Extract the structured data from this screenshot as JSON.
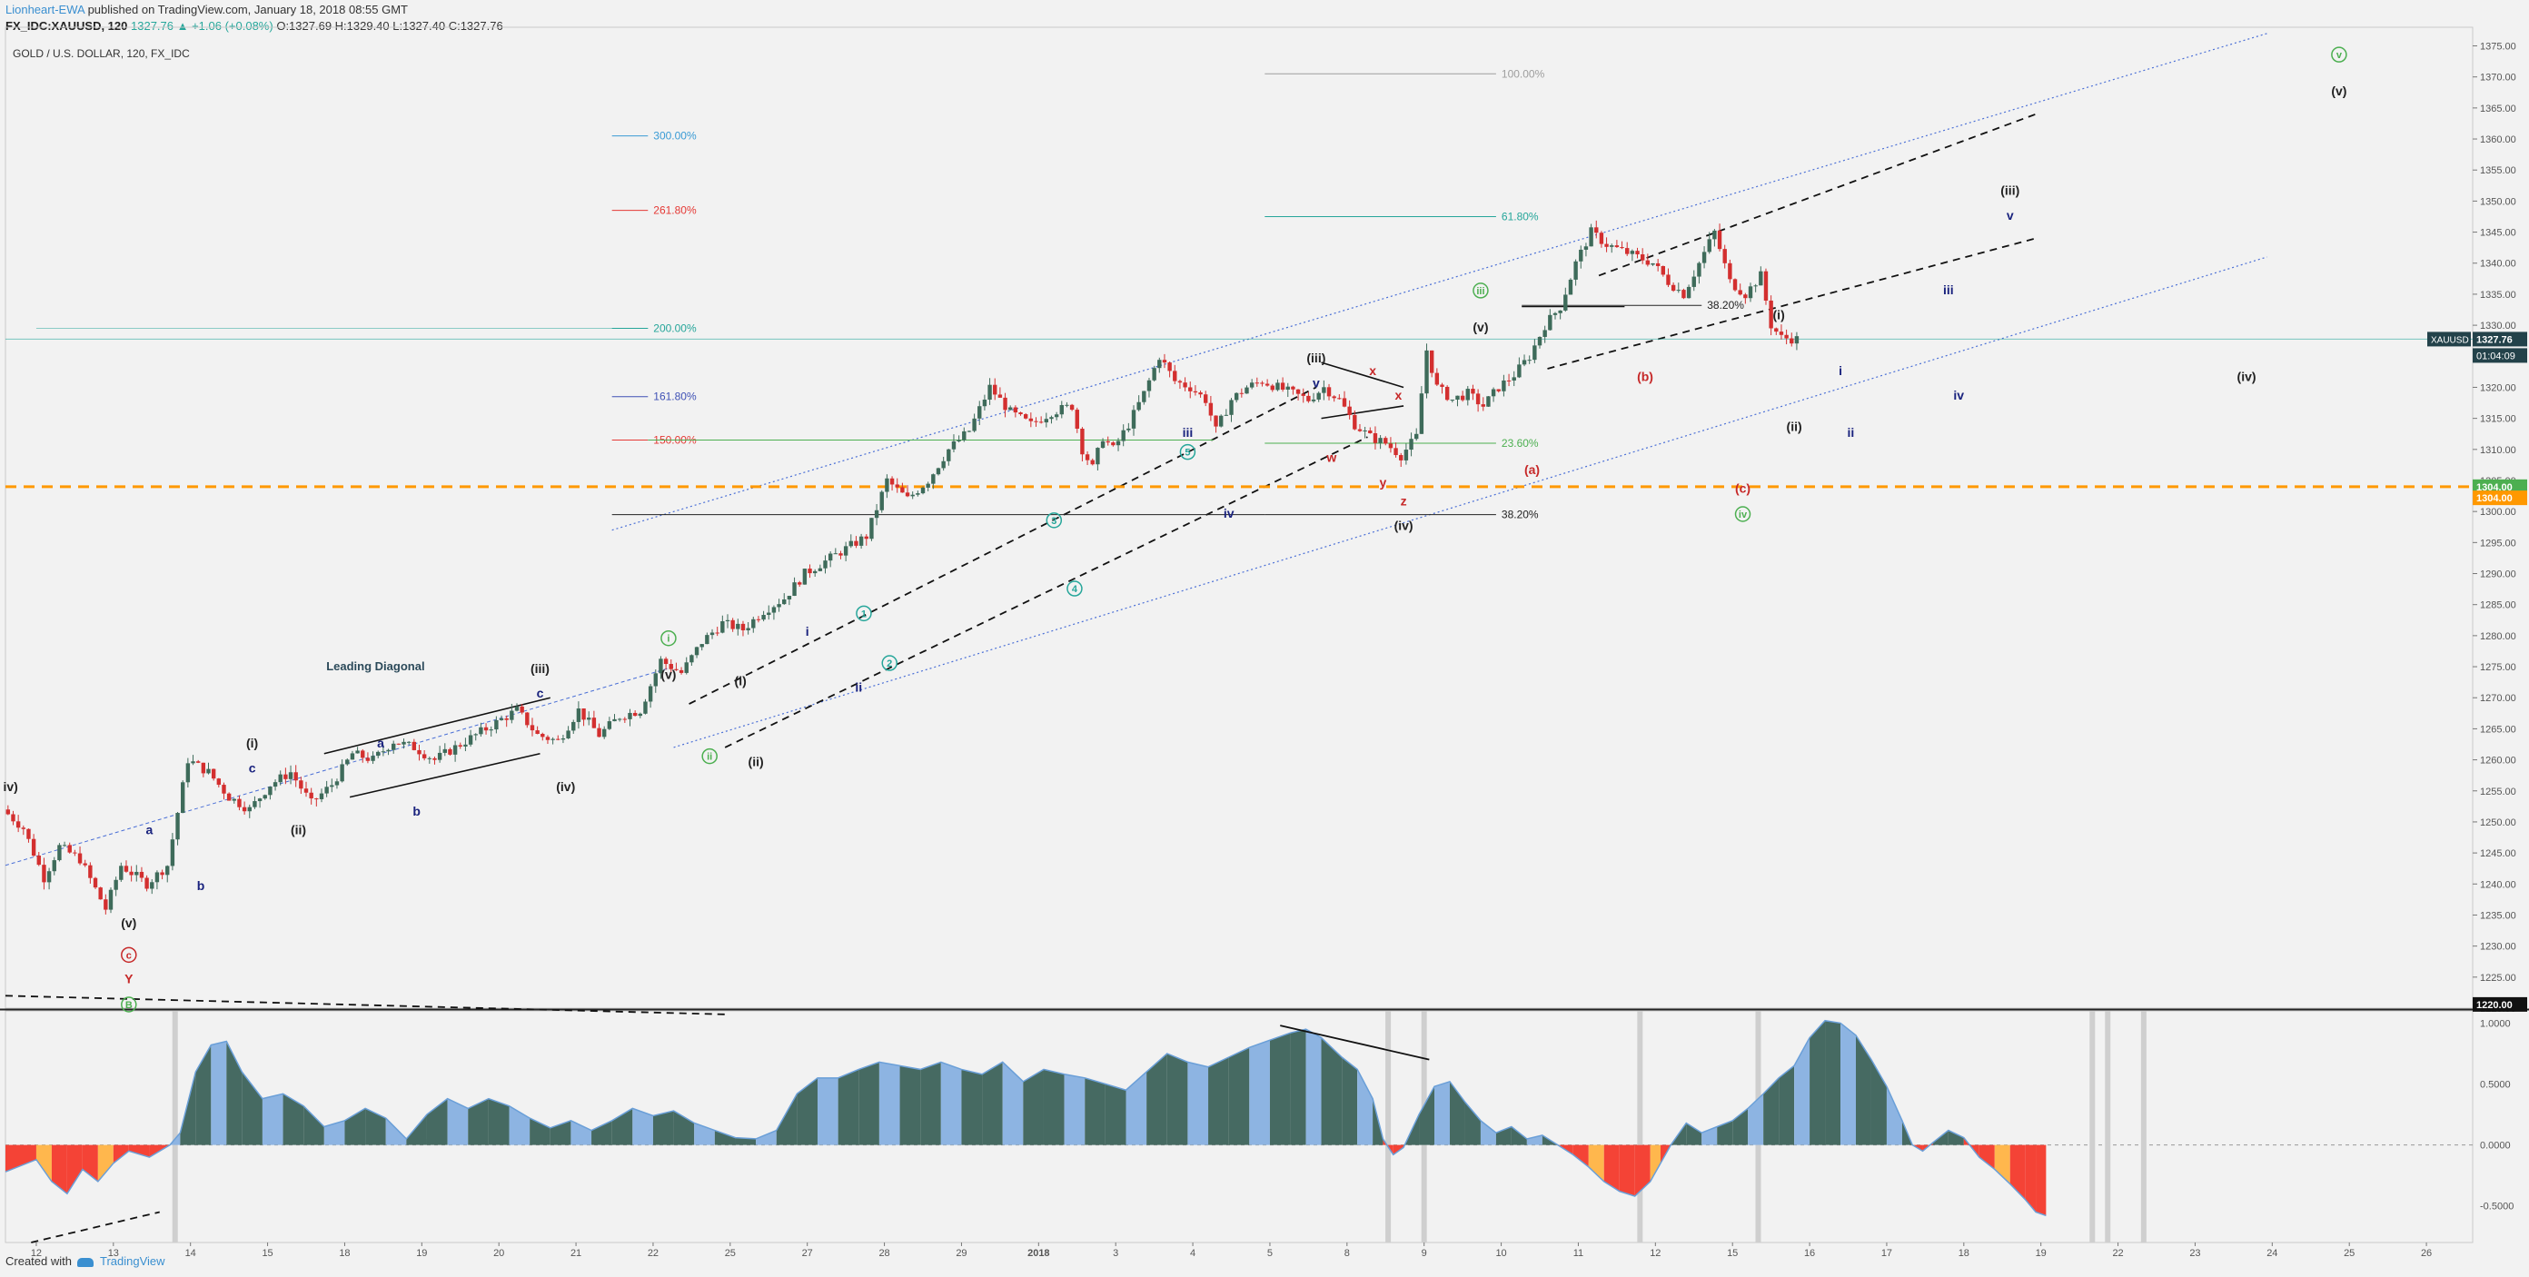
{
  "header": {
    "author": "Lionheart-EWA",
    "published_text": " published on TradingView.com, January 18, 2018 08:55 GMT",
    "symbol": "FX_IDC:XAUUSD, 120",
    "change": "1327.76 ▲ +1.06 (+0.08%)",
    "ohlc": "O:1327.69 H:1329.40 L:1327.40 C:1327.76"
  },
  "footer": {
    "created_with": "Created with",
    "brand": "TradingView"
  },
  "colors": {
    "background": "#f2f2f2",
    "up_candle": "#3e6b5a",
    "down_candle": "#d32f2f",
    "orange_level": "#ff9800",
    "channel_dotted": "#4a6fd6",
    "osc_positive_dark": "#466a62",
    "osc_positive_light": "#8db4e2",
    "osc_negative": "#f44336",
    "osc_negative_light": "#ffb74d",
    "last_price_tag": "#23424a"
  },
  "chart_data": {
    "type": "candlestick",
    "title": "GOLD / U.S. DOLLAR, 120, FX_IDC",
    "symbol": "XAUUSD",
    "timeframe": "120",
    "x_ticks": [
      "12",
      "13",
      "14",
      "15",
      "18",
      "19",
      "20",
      "21",
      "22",
      "25",
      "27",
      "28",
      "29",
      "2018",
      "3",
      "4",
      "5",
      "8",
      "9",
      "10",
      "11",
      "12",
      "15",
      "16",
      "17",
      "18",
      "19",
      "22",
      "23",
      "24",
      "25",
      "26"
    ],
    "y_ticks": [
      "1375.00",
      "1370.00",
      "1365.00",
      "1360.00",
      "1355.00",
      "1350.00",
      "1345.00",
      "1340.00",
      "1335.00",
      "1330.00",
      "1325.00",
      "1320.00",
      "1315.00",
      "1310.00",
      "1305.00",
      "1300.00",
      "1295.00",
      "1290.00",
      "1285.00",
      "1280.00",
      "1275.00",
      "1270.00",
      "1265.00",
      "1260.00",
      "1255.00",
      "1250.00",
      "1245.00",
      "1240.00",
      "1235.00",
      "1230.00",
      "1225.00",
      "1220.00"
    ],
    "ylim": [
      1220,
      1378
    ],
    "path_points": [
      [
        0,
        1252
      ],
      [
        4,
        1249
      ],
      [
        8,
        1241
      ],
      [
        11,
        1246
      ],
      [
        15,
        1244
      ],
      [
        20,
        1236
      ],
      [
        23,
        1243
      ],
      [
        28,
        1240
      ],
      [
        32,
        1243
      ],
      [
        36,
        1260
      ],
      [
        40,
        1258
      ],
      [
        44,
        1254
      ],
      [
        48,
        1252
      ],
      [
        52,
        1256
      ],
      [
        56,
        1258
      ],
      [
        60,
        1253
      ],
      [
        64,
        1256
      ],
      [
        68,
        1261
      ],
      [
        72,
        1260
      ],
      [
        76,
        1263
      ],
      [
        80,
        1262
      ],
      [
        84,
        1260
      ],
      [
        90,
        1263
      ],
      [
        96,
        1266
      ],
      [
        100,
        1268
      ],
      [
        104,
        1264
      ],
      [
        108,
        1263
      ],
      [
        112,
        1268
      ],
      [
        116,
        1264
      ],
      [
        120,
        1267
      ],
      [
        124,
        1268
      ],
      [
        128,
        1276
      ],
      [
        132,
        1274
      ],
      [
        136,
        1279
      ],
      [
        140,
        1282
      ],
      [
        144,
        1281
      ],
      [
        148,
        1284
      ],
      [
        152,
        1286
      ],
      [
        156,
        1290
      ],
      [
        160,
        1292
      ],
      [
        164,
        1294
      ],
      [
        168,
        1296
      ],
      [
        172,
        1305
      ],
      [
        176,
        1302
      ],
      [
        180,
        1305
      ],
      [
        184,
        1310
      ],
      [
        188,
        1313
      ],
      [
        192,
        1320
      ],
      [
        196,
        1316
      ],
      [
        200,
        1314
      ],
      [
        204,
        1316
      ],
      [
        208,
        1317
      ],
      [
        210,
        1310
      ],
      [
        212,
        1307
      ],
      [
        214,
        1312
      ],
      [
        216,
        1310
      ],
      [
        219,
        1314
      ],
      [
        222,
        1319
      ],
      [
        225,
        1325
      ],
      [
        228,
        1321
      ],
      [
        231,
        1320
      ],
      [
        234,
        1318
      ],
      [
        236,
        1313
      ],
      [
        239,
        1318
      ],
      [
        242,
        1320
      ],
      [
        245,
        1321
      ],
      [
        248,
        1320
      ],
      [
        251,
        1319
      ],
      [
        254,
        1318
      ],
      [
        257,
        1320
      ],
      [
        260,
        1318
      ],
      [
        263,
        1314
      ],
      [
        266,
        1312
      ],
      [
        269,
        1311
      ],
      [
        272,
        1309
      ],
      [
        275,
        1312
      ],
      [
        277,
        1326
      ],
      [
        279,
        1320
      ],
      [
        282,
        1318
      ],
      [
        285,
        1319
      ],
      [
        288,
        1317
      ],
      [
        291,
        1320
      ],
      [
        294,
        1322
      ],
      [
        297,
        1325
      ],
      [
        300,
        1330
      ],
      [
        303,
        1333
      ],
      [
        306,
        1340
      ],
      [
        309,
        1345
      ],
      [
        312,
        1343
      ],
      [
        315,
        1342
      ],
      [
        318,
        1341
      ],
      [
        321,
        1340
      ],
      [
        324,
        1337
      ],
      [
        327,
        1335
      ],
      [
        330,
        1340
      ],
      [
        333,
        1345
      ],
      [
        336,
        1337
      ],
      [
        339,
        1335
      ],
      [
        342,
        1338
      ],
      [
        344,
        1330
      ],
      [
        346,
        1328
      ],
      [
        349,
        1327.76
      ]
    ],
    "last_price": "1327.76",
    "countdown": "01:04:09",
    "levels": {
      "orange_dashed": "1304.00",
      "orange_dashed_2": "1304.00",
      "bottom": "1220.00"
    },
    "fib_projection_1": [
      {
        "label": "300.00%",
        "price": 1360.5,
        "color": "#3a9bd5"
      },
      {
        "label": "261.80%",
        "price": 1348.5,
        "color": "#e53935"
      },
      {
        "label": "200.00%",
        "price": 1329.5,
        "color": "#26a69a"
      },
      {
        "label": "161.80%",
        "price": 1318.5,
        "color": "#3f51b5"
      },
      {
        "label": "150.00%",
        "price": 1311.5,
        "color": "#e53935"
      }
    ],
    "fib_projection_2": [
      {
        "label": "100.00%",
        "price": 1370.5,
        "color": "#9e9e9e"
      },
      {
        "label": "61.80%",
        "price": 1347.5,
        "color": "#26a69a"
      },
      {
        "label": "23.60%",
        "price": 1311.0,
        "color": "#4caf50"
      },
      {
        "label": "38.20%",
        "price": 1299.5,
        "color": "#222222"
      }
    ],
    "fib_retrace_3": {
      "label": "38.20%",
      "price": 1333.2,
      "color": "#222222"
    },
    "annotation_text": "Leading Diagonal",
    "wave_labels": [
      {
        "t": "iv)",
        "x": 1,
        "y": 1255,
        "c": "#222"
      },
      {
        "t": "a",
        "x": 28,
        "y": 1248,
        "c": "#1a237e"
      },
      {
        "t": "b",
        "x": 38,
        "y": 1239,
        "c": "#1a237e"
      },
      {
        "t": "(v)",
        "x": 24,
        "y": 1233,
        "c": "#222"
      },
      {
        "t": "c",
        "x": 24,
        "y": 1228,
        "c": "#c62828",
        "circle": true
      },
      {
        "t": "Y",
        "x": 24,
        "y": 1224,
        "c": "#c62828"
      },
      {
        "t": "B",
        "x": 24,
        "y": 1220,
        "c": "#4caf50",
        "circle": true
      },
      {
        "t": "(i)",
        "x": 48,
        "y": 1262,
        "c": "#222"
      },
      {
        "t": "c",
        "x": 48,
        "y": 1258,
        "c": "#1a237e"
      },
      {
        "t": "(ii)",
        "x": 57,
        "y": 1248,
        "c": "#222"
      },
      {
        "t": "a",
        "x": 73,
        "y": 1262,
        "c": "#1a237e"
      },
      {
        "t": "b",
        "x": 80,
        "y": 1251,
        "c": "#1a237e"
      },
      {
        "t": "(iii)",
        "x": 104,
        "y": 1274,
        "c": "#222"
      },
      {
        "t": "c",
        "x": 104,
        "y": 1270,
        "c": "#1a237e"
      },
      {
        "t": "(iv)",
        "x": 109,
        "y": 1255,
        "c": "#222"
      },
      {
        "t": "(v)",
        "x": 129,
        "y": 1273,
        "c": "#222"
      },
      {
        "t": "i",
        "x": 129,
        "y": 1279,
        "c": "#4caf50",
        "circle": true
      },
      {
        "t": "ii",
        "x": 137,
        "y": 1260,
        "c": "#4caf50",
        "circle": true
      },
      {
        "t": "(i)",
        "x": 143,
        "y": 1272,
        "c": "#222"
      },
      {
        "t": "(ii)",
        "x": 146,
        "y": 1259,
        "c": "#222"
      },
      {
        "t": "i",
        "x": 156,
        "y": 1280,
        "c": "#1a237e"
      },
      {
        "t": "ii",
        "x": 166,
        "y": 1271,
        "c": "#1a237e"
      },
      {
        "t": "1",
        "x": 167,
        "y": 1283,
        "c": "#26a69a",
        "circle": true
      },
      {
        "t": "2",
        "x": 172,
        "y": 1275,
        "c": "#26a69a",
        "circle": true
      },
      {
        "t": "3",
        "x": 204,
        "y": 1298,
        "c": "#26a69a",
        "circle": true
      },
      {
        "t": "4",
        "x": 208,
        "y": 1287,
        "c": "#26a69a",
        "circle": true
      },
      {
        "t": "iii",
        "x": 230,
        "y": 1312,
        "c": "#1a237e"
      },
      {
        "t": "5",
        "x": 230,
        "y": 1309,
        "c": "#26a69a",
        "circle": true
      },
      {
        "t": "iv",
        "x": 238,
        "y": 1299,
        "c": "#1a237e"
      },
      {
        "t": "(iii)",
        "x": 255,
        "y": 1324,
        "c": "#222"
      },
      {
        "t": "v",
        "x": 255,
        "y": 1320,
        "c": "#1a237e"
      },
      {
        "t": "w",
        "x": 258,
        "y": 1308,
        "c": "#c62828"
      },
      {
        "t": "x",
        "x": 266,
        "y": 1322,
        "c": "#c62828"
      },
      {
        "t": "x",
        "x": 271,
        "y": 1318,
        "c": "#c62828"
      },
      {
        "t": "y",
        "x": 268,
        "y": 1304,
        "c": "#c62828"
      },
      {
        "t": "z",
        "x": 272,
        "y": 1301,
        "c": "#c62828"
      },
      {
        "t": "(iv)",
        "x": 272,
        "y": 1297,
        "c": "#222"
      },
      {
        "t": "(v)",
        "x": 287,
        "y": 1329,
        "c": "#222"
      },
      {
        "t": "iii",
        "x": 287,
        "y": 1335,
        "c": "#4caf50",
        "circle": true
      },
      {
        "t": "(a)",
        "x": 297,
        "y": 1306,
        "c": "#c62828"
      },
      {
        "t": "(b)",
        "x": 319,
        "y": 1321,
        "c": "#c62828"
      },
      {
        "t": "(c)",
        "x": 338,
        "y": 1303,
        "c": "#c62828"
      },
      {
        "t": "iv",
        "x": 338,
        "y": 1299,
        "c": "#4caf50",
        "circle": true
      },
      {
        "t": "(i)",
        "x": 345,
        "y": 1331,
        "c": "#222"
      },
      {
        "t": "(ii)",
        "x": 348,
        "y": 1313,
        "c": "#222"
      },
      {
        "t": "i",
        "x": 357,
        "y": 1322,
        "c": "#1a237e"
      },
      {
        "t": "ii",
        "x": 359,
        "y": 1312,
        "c": "#1a237e"
      },
      {
        "t": "iii",
        "x": 378,
        "y": 1335,
        "c": "#1a237e"
      },
      {
        "t": "iv",
        "x": 380,
        "y": 1318,
        "c": "#1a237e"
      },
      {
        "t": "(iii)",
        "x": 390,
        "y": 1351,
        "c": "#222"
      },
      {
        "t": "v",
        "x": 390,
        "y": 1347,
        "c": "#1a237e"
      },
      {
        "t": "(iv)",
        "x": 436,
        "y": 1321,
        "c": "#222"
      },
      {
        "t": "(v)",
        "x": 454,
        "y": 1367,
        "c": "#222"
      },
      {
        "t": "v",
        "x": 454,
        "y": 1373,
        "c": "#4caf50",
        "circle": true
      }
    ],
    "osc_y_ticks": [
      "1.0000",
      "0.5000",
      "0.0000",
      "-0.5000"
    ],
    "osc_ylim": [
      -0.8,
      1.1
    ],
    "oscillator_points": [
      [
        0,
        -0.22
      ],
      [
        6,
        -0.12
      ],
      [
        9,
        -0.3
      ],
      [
        12,
        -0.4
      ],
      [
        15,
        -0.2
      ],
      [
        18,
        -0.3
      ],
      [
        21,
        -0.15
      ],
      [
        24,
        -0.05
      ],
      [
        28,
        -0.1
      ],
      [
        32,
        0.0
      ],
      [
        34,
        0.1
      ],
      [
        37,
        0.6
      ],
      [
        40,
        0.82
      ],
      [
        43,
        0.85
      ],
      [
        46,
        0.6
      ],
      [
        50,
        0.38
      ],
      [
        54,
        0.42
      ],
      [
        58,
        0.32
      ],
      [
        62,
        0.15
      ],
      [
        66,
        0.2
      ],
      [
        70,
        0.3
      ],
      [
        74,
        0.22
      ],
      [
        78,
        0.05
      ],
      [
        82,
        0.25
      ],
      [
        86,
        0.38
      ],
      [
        90,
        0.3
      ],
      [
        94,
        0.38
      ],
      [
        98,
        0.32
      ],
      [
        102,
        0.22
      ],
      [
        106,
        0.14
      ],
      [
        110,
        0.2
      ],
      [
        114,
        0.12
      ],
      [
        118,
        0.2
      ],
      [
        122,
        0.3
      ],
      [
        126,
        0.24
      ],
      [
        130,
        0.28
      ],
      [
        134,
        0.18
      ],
      [
        138,
        0.12
      ],
      [
        142,
        0.06
      ],
      [
        146,
        0.05
      ],
      [
        150,
        0.12
      ],
      [
        154,
        0.42
      ],
      [
        158,
        0.55
      ],
      [
        162,
        0.55
      ],
      [
        166,
        0.62
      ],
      [
        170,
        0.68
      ],
      [
        174,
        0.65
      ],
      [
        178,
        0.62
      ],
      [
        182,
        0.68
      ],
      [
        186,
        0.62
      ],
      [
        190,
        0.58
      ],
      [
        194,
        0.68
      ],
      [
        198,
        0.52
      ],
      [
        202,
        0.62
      ],
      [
        206,
        0.58
      ],
      [
        210,
        0.55
      ],
      [
        214,
        0.5
      ],
      [
        218,
        0.45
      ],
      [
        222,
        0.6
      ],
      [
        226,
        0.75
      ],
      [
        230,
        0.68
      ],
      [
        234,
        0.64
      ],
      [
        238,
        0.72
      ],
      [
        242,
        0.8
      ],
      [
        246,
        0.86
      ],
      [
        250,
        0.92
      ],
      [
        253,
        0.95
      ],
      [
        256,
        0.88
      ],
      [
        260,
        0.72
      ],
      [
        263,
        0.62
      ],
      [
        266,
        0.38
      ],
      [
        268,
        0.05
      ],
      [
        270,
        -0.08
      ],
      [
        272,
        -0.02
      ],
      [
        275,
        0.25
      ],
      [
        278,
        0.48
      ],
      [
        281,
        0.52
      ],
      [
        284,
        0.35
      ],
      [
        287,
        0.2
      ],
      [
        290,
        0.1
      ],
      [
        293,
        0.15
      ],
      [
        296,
        0.05
      ],
      [
        299,
        0.08
      ],
      [
        302,
        0.0
      ],
      [
        305,
        -0.08
      ],
      [
        308,
        -0.18
      ],
      [
        311,
        -0.3
      ],
      [
        314,
        -0.38
      ],
      [
        317,
        -0.42
      ],
      [
        320,
        -0.3
      ],
      [
        322,
        -0.15
      ],
      [
        324,
        0.0
      ],
      [
        327,
        0.18
      ],
      [
        330,
        0.1
      ],
      [
        333,
        0.15
      ],
      [
        336,
        0.2
      ],
      [
        339,
        0.3
      ],
      [
        342,
        0.42
      ],
      [
        345,
        0.55
      ],
      [
        348,
        0.65
      ],
      [
        351,
        0.88
      ],
      [
        354,
        1.02
      ],
      [
        357,
        1.0
      ],
      [
        360,
        0.9
      ],
      [
        363,
        0.7
      ],
      [
        366,
        0.48
      ],
      [
        369,
        0.2
      ],
      [
        371,
        0.0
      ],
      [
        373,
        -0.05
      ],
      [
        375,
        0.02
      ],
      [
        378,
        0.12
      ],
      [
        381,
        0.06
      ],
      [
        384,
        -0.1
      ],
      [
        387,
        -0.2
      ],
      [
        390,
        -0.32
      ],
      [
        393,
        -0.45
      ],
      [
        395,
        -0.55
      ],
      [
        397,
        -0.58
      ]
    ]
  }
}
